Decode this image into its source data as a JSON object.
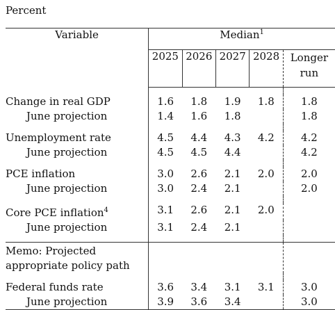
{
  "caption": "Percent",
  "header": {
    "variable": "Variable",
    "median": "Median",
    "median_note": "1",
    "years": [
      "2025",
      "2026",
      "2027",
      "2028"
    ],
    "longer_run_line1": "Longer",
    "longer_run_line2": "run"
  },
  "rows": {
    "gdp": {
      "label": "Change in real GDP",
      "v": [
        "1.6",
        "1.8",
        "1.9",
        "1.8"
      ],
      "lr": "1.8"
    },
    "gdp_june": {
      "label": "June projection",
      "v": [
        "1.4",
        "1.6",
        "1.8",
        ""
      ],
      "lr": "1.8"
    },
    "unemp": {
      "label": "Unemployment rate",
      "v": [
        "4.5",
        "4.4",
        "4.3",
        "4.2"
      ],
      "lr": "4.2"
    },
    "unemp_june": {
      "label": "June projection",
      "v": [
        "4.5",
        "4.5",
        "4.4",
        ""
      ],
      "lr": "4.2"
    },
    "pce": {
      "label": "PCE inflation",
      "v": [
        "3.0",
        "2.6",
        "2.1",
        "2.0"
      ],
      "lr": "2.0"
    },
    "pce_june": {
      "label": "June projection",
      "v": [
        "3.0",
        "2.4",
        "2.1",
        ""
      ],
      "lr": "2.0"
    },
    "core": {
      "label": "Core PCE inflation",
      "note": "4",
      "v": [
        "3.1",
        "2.6",
        "2.1",
        "2.0"
      ],
      "lr": ""
    },
    "core_june": {
      "label": "June projection",
      "v": [
        "3.1",
        "2.4",
        "2.1",
        ""
      ],
      "lr": ""
    },
    "memo_line1": "Memo: Projected",
    "memo_line2": "appropriate policy path",
    "ffr": {
      "label": "Federal funds rate",
      "v": [
        "3.6",
        "3.4",
        "3.1",
        "3.1"
      ],
      "lr": "3.0"
    },
    "ffr_june": {
      "label": "June projection",
      "v": [
        "3.9",
        "3.6",
        "3.4",
        ""
      ],
      "lr": "3.0"
    }
  }
}
